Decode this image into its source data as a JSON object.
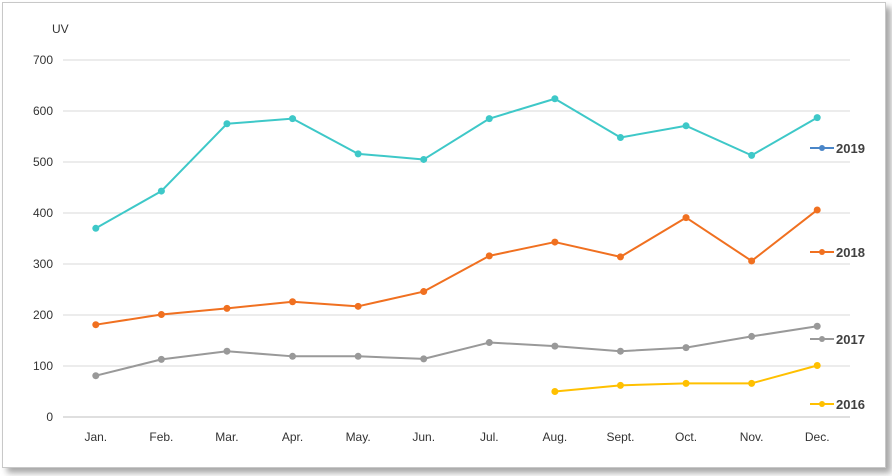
{
  "chart_data": {
    "type": "line",
    "ylabel": "UV",
    "ylim": [
      0,
      700
    ],
    "yticks": [
      0,
      100,
      200,
      300,
      400,
      500,
      600,
      700
    ],
    "grid": true,
    "legend_placement": "right, at series ends",
    "categories": [
      "Jan.",
      "Feb.",
      "Mar.",
      "Apr.",
      "May.",
      "Jun.",
      "Jul.",
      "Aug.",
      "Sept.",
      "Oct.",
      "Nov.",
      "Dec."
    ],
    "series": [
      {
        "name": "2019",
        "legend_color": "#4a86c8",
        "color": "#3ec8c8",
        "values": [
          370,
          443,
          575,
          585,
          516,
          505,
          585,
          624,
          548,
          571,
          513,
          587
        ]
      },
      {
        "name": "2018",
        "color": "#f07020",
        "values": [
          181,
          201,
          213,
          226,
          217,
          246,
          316,
          343,
          314,
          391,
          306,
          406
        ]
      },
      {
        "name": "2017",
        "color": "#999999",
        "values": [
          81,
          113,
          129,
          119,
          119,
          114,
          146,
          139,
          129,
          136,
          158,
          178
        ]
      },
      {
        "name": "2016",
        "color": "#ffc000",
        "values": [
          null,
          null,
          null,
          null,
          null,
          null,
          null,
          50,
          62,
          66,
          66,
          101
        ]
      }
    ]
  }
}
